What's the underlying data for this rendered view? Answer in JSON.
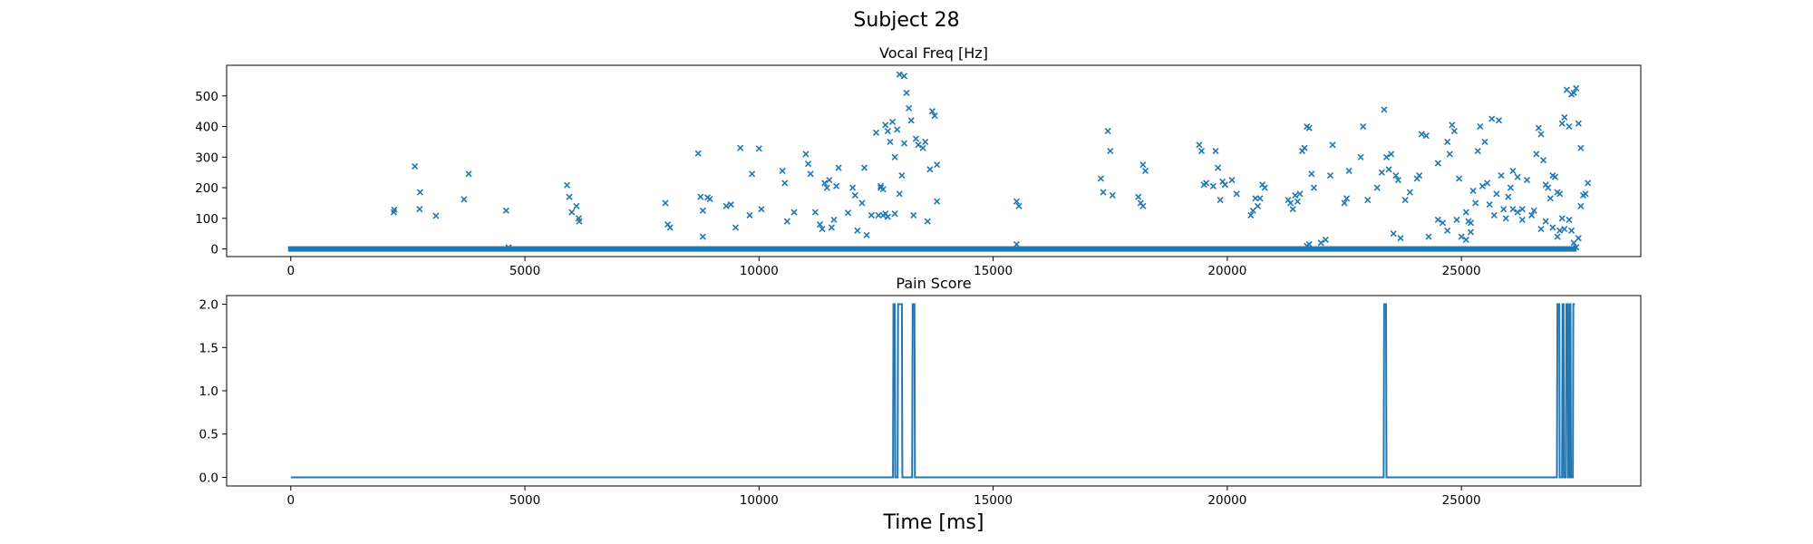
{
  "figure": {
    "title": "Subject 28",
    "xlabel": "Time [ms]"
  },
  "chart_data": [
    {
      "type": "scatter",
      "title": "Vocal Freq [Hz]",
      "marker": "x",
      "color": "#1f77b4",
      "xlim": [
        -1370,
        28830
      ],
      "ylim": [
        -25,
        600
      ],
      "xticks": [
        0,
        5000,
        10000,
        15000,
        20000,
        25000
      ],
      "yticks": [
        0,
        100,
        200,
        300,
        400,
        500
      ],
      "baseline": {
        "y": 0,
        "x_start": 0,
        "x_end": 27400
      },
      "points": [
        [
          2200,
          120
        ],
        [
          2210,
          128
        ],
        [
          2650,
          270
        ],
        [
          2750,
          130
        ],
        [
          2760,
          185
        ],
        [
          3100,
          108
        ],
        [
          3700,
          162
        ],
        [
          3800,
          245
        ],
        [
          4600,
          125
        ],
        [
          4650,
          5
        ],
        [
          5900,
          208
        ],
        [
          5950,
          170
        ],
        [
          6000,
          120
        ],
        [
          6100,
          140
        ],
        [
          6150,
          100
        ],
        [
          6160,
          90
        ],
        [
          8000,
          150
        ],
        [
          8050,
          80
        ],
        [
          8100,
          70
        ],
        [
          8700,
          312
        ],
        [
          8750,
          170
        ],
        [
          8800,
          125
        ],
        [
          8900,
          168
        ],
        [
          8950,
          163
        ],
        [
          8800,
          40
        ],
        [
          9300,
          140
        ],
        [
          9400,
          145
        ],
        [
          9500,
          70
        ],
        [
          9600,
          330
        ],
        [
          9800,
          110
        ],
        [
          9850,
          245
        ],
        [
          10000,
          328
        ],
        [
          10050,
          130
        ],
        [
          10500,
          255
        ],
        [
          10550,
          215
        ],
        [
          10600,
          90
        ],
        [
          10750,
          120
        ],
        [
          11000,
          310
        ],
        [
          11050,
          278
        ],
        [
          11100,
          245
        ],
        [
          11200,
          120
        ],
        [
          11300,
          80
        ],
        [
          11350,
          65
        ],
        [
          11400,
          215
        ],
        [
          11450,
          200
        ],
        [
          11500,
          225
        ],
        [
          11550,
          70
        ],
        [
          11600,
          95
        ],
        [
          11650,
          205
        ],
        [
          11700,
          265
        ],
        [
          11900,
          118
        ],
        [
          12000,
          200
        ],
        [
          12050,
          175
        ],
        [
          12100,
          60
        ],
        [
          12200,
          150
        ],
        [
          12250,
          265
        ],
        [
          12300,
          45
        ],
        [
          12400,
          110
        ],
        [
          12500,
          380
        ],
        [
          12550,
          110
        ],
        [
          12600,
          205
        ],
        [
          12650,
          110
        ],
        [
          12700,
          405
        ],
        [
          12750,
          385
        ],
        [
          12800,
          350
        ],
        [
          12850,
          415
        ],
        [
          12900,
          115
        ],
        [
          12950,
          390
        ],
        [
          13000,
          570
        ],
        [
          13100,
          565
        ],
        [
          13150,
          510
        ],
        [
          13200,
          460
        ],
        [
          13250,
          420
        ],
        [
          13300,
          110
        ],
        [
          13350,
          360
        ],
        [
          13400,
          340
        ],
        [
          13500,
          330
        ],
        [
          13550,
          350
        ],
        [
          13600,
          90
        ],
        [
          13650,
          260
        ],
        [
          13700,
          450
        ],
        [
          13750,
          435
        ],
        [
          13800,
          275
        ],
        [
          13800,
          155
        ],
        [
          12600,
          200
        ],
        [
          12650,
          195
        ],
        [
          12900,
          300
        ],
        [
          13000,
          180
        ],
        [
          13100,
          345
        ],
        [
          12700,
          115
        ],
        [
          12750,
          105
        ],
        [
          13050,
          240
        ],
        [
          15500,
          155
        ],
        [
          15550,
          140
        ],
        [
          15500,
          15
        ],
        [
          17300,
          230
        ],
        [
          17350,
          185
        ],
        [
          17450,
          385
        ],
        [
          17500,
          320
        ],
        [
          17550,
          175
        ],
        [
          18100,
          170
        ],
        [
          18150,
          150
        ],
        [
          18200,
          275
        ],
        [
          18250,
          255
        ],
        [
          18200,
          140
        ],
        [
          19400,
          340
        ],
        [
          19450,
          320
        ],
        [
          19500,
          210
        ],
        [
          19550,
          215
        ],
        [
          19700,
          205
        ],
        [
          19750,
          320
        ],
        [
          19800,
          265
        ],
        [
          19850,
          160
        ],
        [
          19900,
          220
        ],
        [
          19950,
          210
        ],
        [
          20100,
          225
        ],
        [
          20200,
          180
        ],
        [
          20500,
          110
        ],
        [
          20550,
          125
        ],
        [
          20600,
          165
        ],
        [
          20650,
          140
        ],
        [
          20700,
          165
        ],
        [
          20750,
          210
        ],
        [
          20800,
          200
        ],
        [
          21300,
          160
        ],
        [
          21350,
          150
        ],
        [
          21400,
          130
        ],
        [
          21450,
          175
        ],
        [
          21500,
          155
        ],
        [
          21550,
          180
        ],
        [
          21600,
          320
        ],
        [
          21650,
          330
        ],
        [
          21700,
          400
        ],
        [
          21750,
          395
        ],
        [
          21800,
          245
        ],
        [
          21850,
          200
        ],
        [
          22200,
          240
        ],
        [
          22250,
          340
        ],
        [
          21700,
          10
        ],
        [
          21750,
          15
        ],
        [
          22000,
          20
        ],
        [
          22100,
          30
        ],
        [
          22500,
          150
        ],
        [
          22550,
          165
        ],
        [
          22600,
          255
        ],
        [
          22850,
          300
        ],
        [
          22900,
          400
        ],
        [
          23000,
          160
        ],
        [
          23200,
          200
        ],
        [
          23300,
          250
        ],
        [
          23350,
          455
        ],
        [
          23400,
          300
        ],
        [
          23450,
          260
        ],
        [
          23500,
          310
        ],
        [
          23550,
          50
        ],
        [
          23600,
          240
        ],
        [
          23650,
          225
        ],
        [
          23700,
          35
        ],
        [
          23800,
          160
        ],
        [
          23900,
          185
        ],
        [
          24050,
          230
        ],
        [
          24100,
          240
        ],
        [
          24150,
          375
        ],
        [
          24250,
          370
        ],
        [
          24300,
          40
        ],
        [
          24500,
          280
        ],
        [
          24700,
          350
        ],
        [
          24750,
          310
        ],
        [
          24800,
          405
        ],
        [
          24850,
          385
        ],
        [
          24900,
          95
        ],
        [
          24950,
          230
        ],
        [
          25100,
          120
        ],
        [
          25150,
          90
        ],
        [
          25200,
          85
        ],
        [
          25250,
          190
        ],
        [
          25300,
          150
        ],
        [
          25350,
          320
        ],
        [
          25400,
          400
        ],
        [
          25450,
          205
        ],
        [
          25500,
          350
        ],
        [
          25550,
          215
        ],
        [
          25600,
          145
        ],
        [
          25650,
          425
        ],
        [
          25700,
          110
        ],
        [
          25750,
          180
        ],
        [
          25800,
          420
        ],
        [
          25850,
          240
        ],
        [
          25900,
          130
        ],
        [
          25950,
          100
        ],
        [
          26000,
          170
        ],
        [
          26050,
          200
        ],
        [
          26100,
          255
        ],
        [
          26200,
          235
        ],
        [
          26300,
          130
        ],
        [
          26400,
          225
        ],
        [
          26500,
          110
        ],
        [
          26550,
          125
        ],
        [
          26600,
          310
        ],
        [
          26650,
          395
        ],
        [
          26700,
          375
        ],
        [
          26750,
          290
        ],
        [
          26800,
          210
        ],
        [
          26850,
          200
        ],
        [
          26900,
          165
        ],
        [
          26950,
          240
        ],
        [
          27000,
          235
        ],
        [
          27050,
          185
        ],
        [
          27100,
          180
        ],
        [
          27150,
          410
        ],
        [
          27200,
          430
        ],
        [
          27250,
          520
        ],
        [
          27300,
          400
        ],
        [
          27350,
          505
        ],
        [
          27400,
          510
        ],
        [
          27450,
          525
        ],
        [
          27500,
          410
        ],
        [
          27550,
          330
        ],
        [
          27600,
          175
        ],
        [
          27650,
          180
        ],
        [
          27700,
          215
        ],
        [
          27150,
          100
        ],
        [
          27200,
          65
        ],
        [
          27300,
          95
        ],
        [
          27350,
          60
        ],
        [
          27400,
          20
        ],
        [
          27450,
          5
        ],
        [
          27500,
          35
        ],
        [
          27550,
          140
        ],
        [
          27100,
          60
        ],
        [
          27050,
          40
        ],
        [
          26950,
          70
        ],
        [
          25100,
          30
        ],
        [
          25200,
          55
        ],
        [
          25000,
          40
        ],
        [
          24700,
          60
        ],
        [
          24500,
          95
        ],
        [
          24600,
          85
        ],
        [
          26100,
          130
        ],
        [
          26200,
          120
        ],
        [
          26300,
          95
        ],
        [
          26700,
          65
        ],
        [
          26800,
          90
        ]
      ]
    },
    {
      "type": "line",
      "title": "Pain Score",
      "color": "#1f77b4",
      "xlim": [
        -1370,
        28830
      ],
      "ylim": [
        -0.1,
        2.1
      ],
      "xticks": [
        0,
        5000,
        10000,
        15000,
        20000,
        25000
      ],
      "yticks": [
        0.0,
        0.5,
        1.0,
        1.5,
        2.0
      ],
      "ytick_labels": [
        "0.0",
        "0.5",
        "1.0",
        "1.5",
        "2.0"
      ],
      "x": [
        0,
        12860,
        12870,
        12900,
        12910,
        12960,
        12970,
        13050,
        13060,
        13270,
        13280,
        13320,
        13330,
        23340,
        23350,
        23390,
        23400,
        27040,
        27050,
        27090,
        27100,
        27150,
        27160,
        27180,
        27190,
        27230,
        27240,
        27270,
        27280,
        27300,
        27310,
        27330,
        27340,
        27380,
        27390,
        27410,
        27420
      ],
      "y": [
        0,
        0,
        2,
        2,
        0,
        0,
        2,
        2,
        0,
        0,
        2,
        2,
        0,
        0,
        2,
        2,
        0,
        0,
        2,
        2,
        0,
        0,
        2,
        2,
        0,
        0,
        2,
        2,
        0,
        0,
        2,
        2,
        0,
        0,
        2,
        2,
        2
      ]
    }
  ]
}
